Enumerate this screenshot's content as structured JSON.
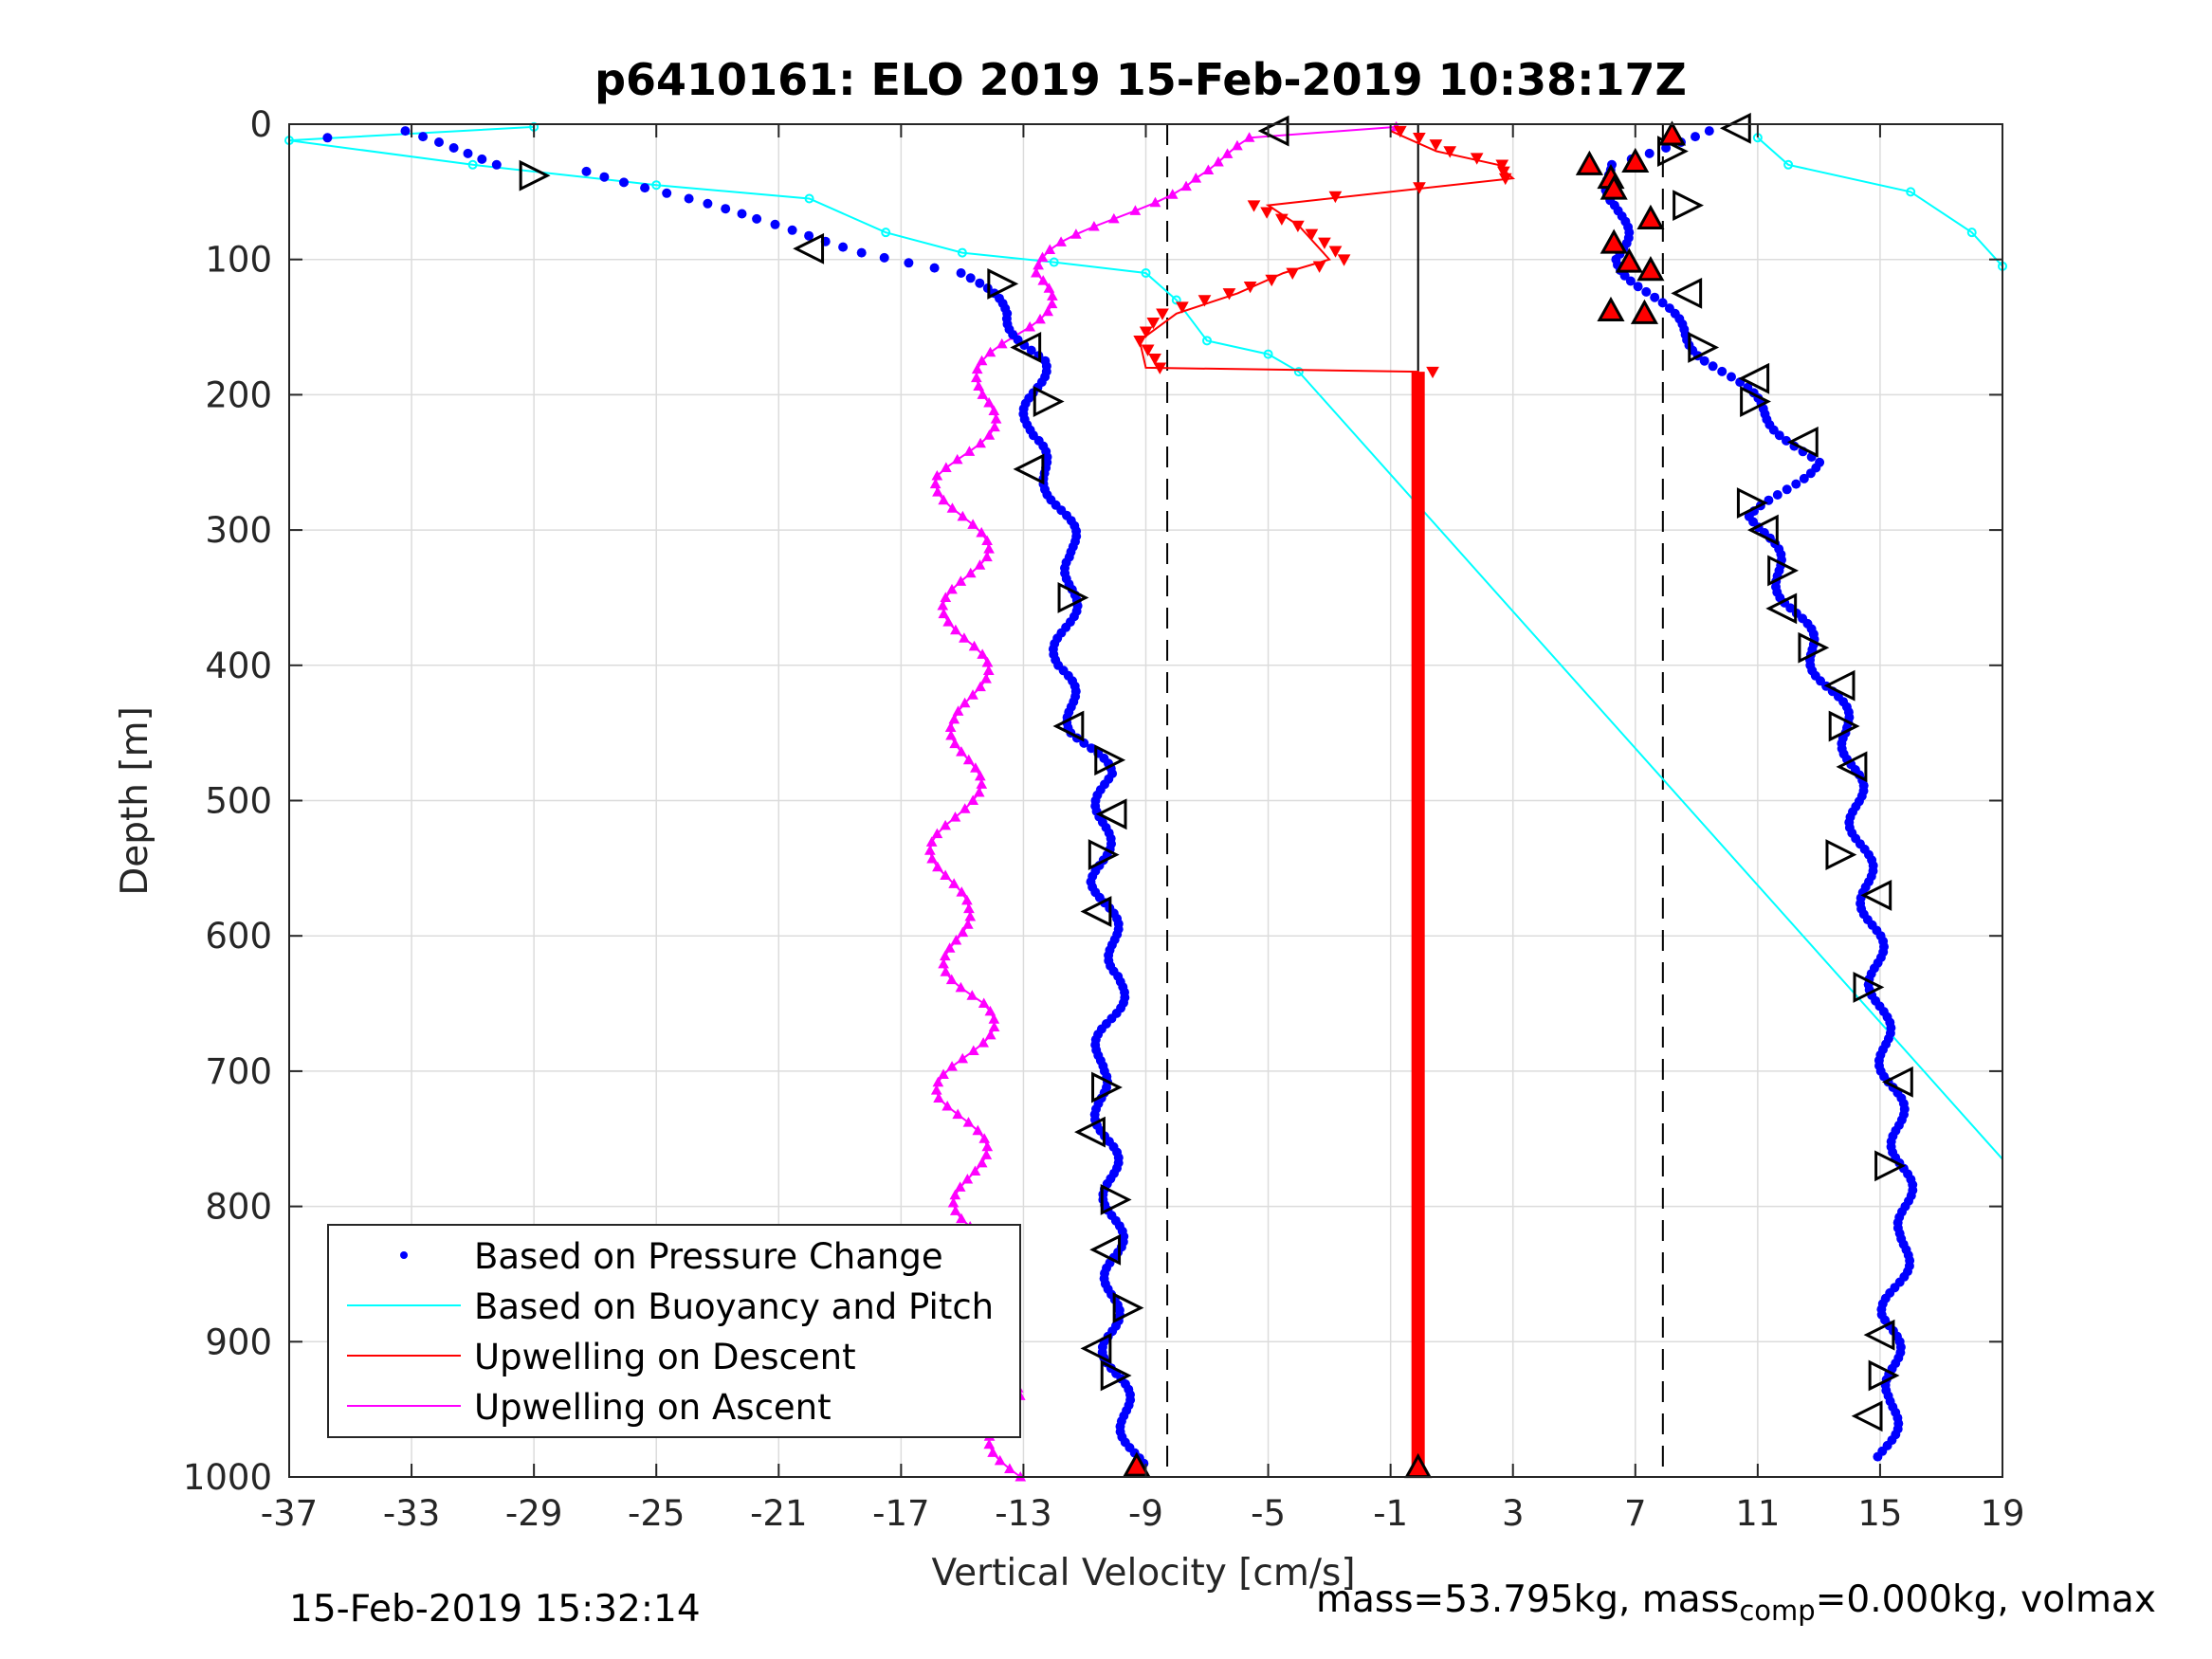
{
  "chart_data": {
    "type": "scatter",
    "title": "p6410161: ELO 2019 15-Feb-2019 10:38:17Z",
    "xlabel": "Vertical Velocity [cm/s]",
    "ylabel": "Depth [m]",
    "xlim": [
      -37,
      19
    ],
    "ylim": [
      0,
      1000
    ],
    "y_reversed": true,
    "grid": true,
    "xticks": [
      -37,
      -33,
      -29,
      -25,
      -21,
      -17,
      -13,
      -9,
      -5,
      -1,
      3,
      7,
      11,
      15,
      19
    ],
    "xtick_labels": [
      "-37",
      "-33",
      "-29",
      "-25",
      "-21",
      "-17",
      "-13",
      "-9",
      "-5",
      "-1",
      "3",
      "7",
      "11",
      "15",
      "19"
    ],
    "yticks": [
      0,
      100,
      200,
      300,
      400,
      500,
      600,
      700,
      800,
      900,
      1000
    ],
    "ytick_labels": [
      "0",
      "100",
      "200",
      "300",
      "400",
      "500",
      "600",
      "700",
      "800",
      "900",
      "1000"
    ],
    "legend_position": "bottom-left",
    "reference_lines": [
      {
        "x": -0.1,
        "style": "solid",
        "color": "#000000"
      },
      {
        "x": -8.3,
        "style": "dashed",
        "color": "#000000"
      },
      {
        "x": 7.9,
        "style": "dashed",
        "color": "#000000"
      }
    ],
    "series": [
      {
        "name": "Based on Pressure Change",
        "color": "#0000ff",
        "marker": "dot",
        "descent": [
          [
            -36,
            10
          ],
          [
            -33.5,
            5
          ],
          [
            -30,
            30
          ],
          [
            -27,
            35
          ],
          [
            -24,
            55
          ],
          [
            -22,
            70
          ],
          [
            -18,
            95
          ],
          [
            -15,
            110
          ],
          [
            -13.5,
            140
          ],
          [
            -12.5,
            175
          ],
          [
            -12.8,
            230
          ],
          [
            -12,
            270
          ],
          [
            -11.3,
            320
          ],
          [
            -11.8,
            400
          ],
          [
            -11.2,
            450
          ],
          [
            -10.3,
            480
          ],
          [
            -10.5,
            560
          ],
          [
            -9.8,
            630
          ],
          [
            -10.6,
            700
          ],
          [
            -10.2,
            760
          ],
          [
            -10,
            830
          ],
          [
            -10.2,
            900
          ],
          [
            -9.3,
            990
          ]
        ],
        "ascent": [
          [
            9.5,
            5
          ],
          [
            6,
            30
          ],
          [
            6.5,
            60
          ],
          [
            6.5,
            100
          ],
          [
            8,
            140
          ],
          [
            9.5,
            175
          ],
          [
            12,
            230
          ],
          [
            12.8,
            250
          ],
          [
            11,
            290
          ],
          [
            12,
            350
          ],
          [
            13,
            400
          ],
          [
            14,
            450
          ],
          [
            14.3,
            520
          ],
          [
            14.8,
            600
          ],
          [
            15,
            660
          ],
          [
            15.6,
            740
          ],
          [
            15.9,
            820
          ],
          [
            15.3,
            880
          ],
          [
            15.5,
            940
          ],
          [
            15.1,
            985
          ]
        ]
      },
      {
        "name": "Based on Buoyancy and Pitch",
        "color": "#00ffff",
        "marker": "line",
        "descent": [
          [
            -29,
            2
          ],
          [
            -37,
            12
          ],
          [
            -31,
            30
          ],
          [
            -25,
            45
          ],
          [
            -20,
            55
          ],
          [
            -17.5,
            80
          ],
          [
            -15,
            95
          ],
          [
            -12,
            102
          ],
          [
            -9,
            110
          ],
          [
            -8,
            130
          ],
          [
            -7,
            160
          ],
          [
            -5,
            170
          ],
          [
            -4,
            183
          ],
          [
            19,
            765
          ]
        ],
        "ascent": [
          [
            11,
            10
          ],
          [
            12,
            30
          ],
          [
            16,
            50
          ],
          [
            18,
            80
          ],
          [
            19,
            105
          ]
        ]
      },
      {
        "name": "Upwelling on Descent",
        "color": "#ff0000",
        "marker": "triangle-down",
        "points": [
          [
            -1,
            5
          ],
          [
            0.5,
            20
          ],
          [
            2.5,
            30
          ],
          [
            3,
            40
          ],
          [
            -5,
            60
          ],
          [
            -4,
            75
          ],
          [
            -3,
            100
          ],
          [
            -4.5,
            110
          ],
          [
            -6,
            125
          ],
          [
            -8,
            140
          ],
          [
            -9.2,
            160
          ],
          [
            -9,
            180
          ],
          [
            -0.1,
            183
          ],
          [
            -0.1,
            1000
          ]
        ]
      },
      {
        "name": "Upwelling on Ascent",
        "color": "#ff00ff",
        "marker": "triangle-up",
        "points": [
          [
            -13.2,
            1000
          ],
          [
            -13.7,
            940
          ],
          [
            -15,
            900
          ],
          [
            -14.2,
            850
          ],
          [
            -14.7,
            780
          ],
          [
            -15.2,
            720
          ],
          [
            -14.5,
            650
          ],
          [
            -15.5,
            580
          ],
          [
            -15.2,
            500
          ],
          [
            -14.6,
            440
          ],
          [
            -15,
            380
          ],
          [
            -14.8,
            320
          ],
          [
            -15.2,
            260
          ],
          [
            -14.3,
            200
          ],
          [
            -13,
            150
          ],
          [
            -12.5,
            110
          ],
          [
            -10,
            70
          ],
          [
            -8,
            40
          ],
          [
            -5,
            10
          ],
          [
            -0.1,
            2
          ]
        ]
      }
    ],
    "legend": [
      "Based on Pressure Change",
      "Based on Buoyancy and Pitch",
      "Upwelling on Descent",
      "Upwelling on Ascent"
    ]
  },
  "footer": {
    "timestamp": "15-Feb-2019 15:32:14",
    "mass_prefix": "mass=53.795kg, mass",
    "mass_sub": "comp",
    "mass_suffix": "=0.000kg, volmax"
  }
}
